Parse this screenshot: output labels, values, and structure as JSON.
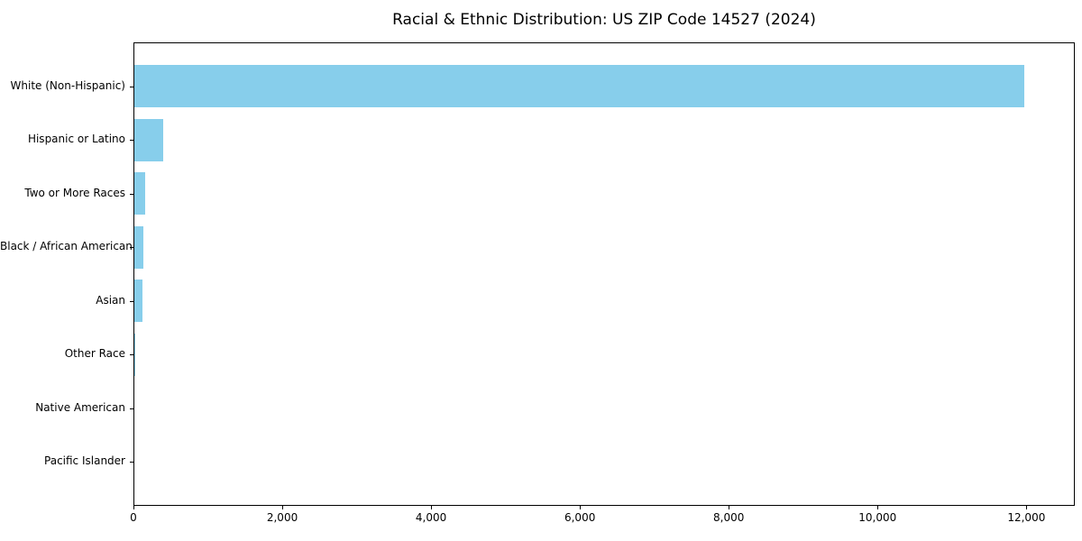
{
  "chart_data": {
    "type": "bar",
    "orientation": "horizontal",
    "title": "Racial & Ethnic Distribution: US ZIP Code 14527 (2024)",
    "categories": [
      "White (Non-Hispanic)",
      "Hispanic or Latino",
      "Two or More Races",
      "Black / African American",
      "Asian",
      "Other Race",
      "Native American",
      "Pacific Islander"
    ],
    "values": [
      11980,
      385,
      150,
      118,
      105,
      12,
      0,
      0
    ],
    "xlabel": "",
    "ylabel": "",
    "xlim": [
      0,
      12650
    ],
    "x_ticks": [
      0,
      2000,
      4000,
      6000,
      8000,
      10000,
      12000
    ],
    "x_tick_labels": [
      "0",
      "2,000",
      "4,000",
      "6,000",
      "8,000",
      "10,000",
      "12,000"
    ],
    "bar_color": "#87CEEB",
    "frame_color": "#000000",
    "background_color": "#ffffff",
    "grid": false,
    "legend": null
  }
}
